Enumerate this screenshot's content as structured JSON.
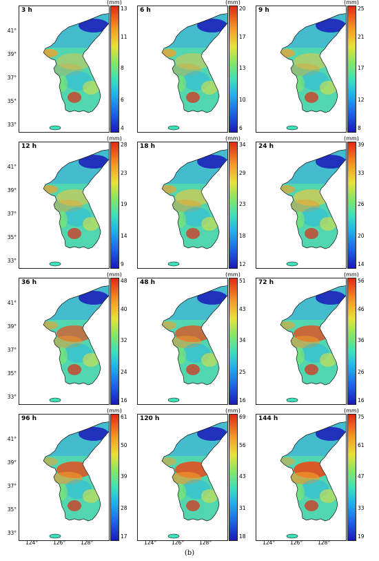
{
  "colors": {
    "low": "#1a1ab8",
    "mid": "#86e665",
    "high": "#e02a16",
    "land": "#3ccbd0",
    "frame": "#222222"
  },
  "unit": "(mm)",
  "y_axis_labels": [
    "41°",
    "39°",
    "37°",
    "35°",
    "33°"
  ],
  "x_axis_labels": [
    "124°",
    "126°",
    "128°"
  ],
  "caption": "(b)",
  "panels": [
    {
      "title": "3 h",
      "ticks": [
        "13",
        "11",
        "8",
        "6",
        "4"
      ]
    },
    {
      "title": "6 h",
      "ticks": [
        "20",
        "17",
        "13",
        "10",
        "6"
      ]
    },
    {
      "title": "9 h",
      "ticks": [
        "25",
        "21",
        "17",
        "12",
        "8"
      ]
    },
    {
      "title": "12 h",
      "ticks": [
        "28",
        "23",
        "19",
        "14",
        "9"
      ]
    },
    {
      "title": "18 h",
      "ticks": [
        "34",
        "29",
        "23",
        "18",
        "12"
      ]
    },
    {
      "title": "24 h",
      "ticks": [
        "39",
        "33",
        "26",
        "20",
        "14"
      ]
    },
    {
      "title": "36 h",
      "ticks": [
        "48",
        "40",
        "32",
        "24",
        "16"
      ]
    },
    {
      "title": "48 h",
      "ticks": [
        "51",
        "43",
        "34",
        "25",
        "16"
      ]
    },
    {
      "title": "72 h",
      "ticks": [
        "56",
        "46",
        "36",
        "26",
        "16"
      ]
    },
    {
      "title": "96 h",
      "ticks": [
        "61",
        "50",
        "39",
        "28",
        "17"
      ]
    },
    {
      "title": "120 h",
      "ticks": [
        "69",
        "56",
        "43",
        "31",
        "18"
      ]
    },
    {
      "title": "144 h",
      "ticks": [
        "75",
        "61",
        "47",
        "33",
        "19"
      ]
    }
  ]
}
